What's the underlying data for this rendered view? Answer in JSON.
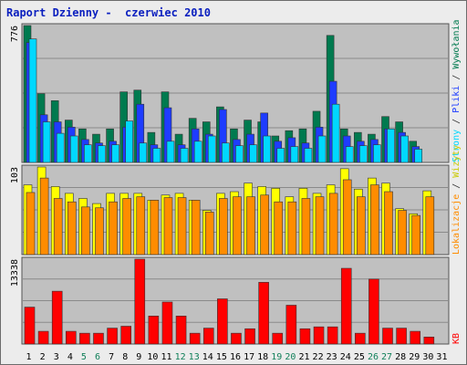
{
  "report_title": "Raport Dzienny -  czerwiec 2010",
  "colors": {
    "wywolania": "#007a4f",
    "pliki": "#1e3cff",
    "strony": "#00d8ff",
    "wizyty": "#ffff00",
    "lokalizacje": "#ff8c00",
    "kb": "#ff0000",
    "weekend": "#11805a",
    "weekday": "#000000",
    "panel": "#c0c0c0"
  },
  "chart_data": [
    {
      "type": "bar",
      "name": "hits-panel",
      "scale_max_label": "776",
      "ylim": [
        0,
        776
      ],
      "legend": [
        "Wywołania",
        "Pliki",
        "Strony"
      ],
      "categories": [
        "1",
        "2",
        "3",
        "4",
        "5",
        "6",
        "7",
        "8",
        "9",
        "10",
        "11",
        "12",
        "13",
        "14",
        "15",
        "16",
        "17",
        "18",
        "19",
        "20",
        "21",
        "22",
        "23",
        "24",
        "25",
        "26",
        "27",
        "28",
        "29",
        "30",
        "31"
      ],
      "series": [
        {
          "name": "Wywołania",
          "values": [
            776,
            390,
            350,
            240,
            190,
            160,
            190,
            400,
            410,
            170,
            400,
            160,
            250,
            230,
            315,
            190,
            240,
            230,
            150,
            180,
            190,
            290,
            720,
            190,
            170,
            160,
            260,
            230,
            120,
            0,
            0
          ]
        },
        {
          "name": "Pliki",
          "values": [
            680,
            270,
            230,
            200,
            130,
            110,
            120,
            200,
            330,
            100,
            310,
            100,
            190,
            160,
            300,
            130,
            160,
            280,
            120,
            140,
            110,
            200,
            460,
            150,
            120,
            130,
            190,
            170,
            90,
            0,
            0
          ]
        },
        {
          "name": "Strony",
          "values": [
            700,
            230,
            165,
            150,
            100,
            95,
            100,
            235,
            110,
            80,
            120,
            80,
            120,
            150,
            110,
            95,
            100,
            150,
            80,
            90,
            80,
            150,
            330,
            90,
            95,
            100,
            190,
            150,
            75,
            0,
            0
          ]
        }
      ]
    },
    {
      "type": "bar",
      "name": "visits-panel",
      "scale_max_label": "103",
      "ylim": [
        0,
        103
      ],
      "legend": [
        "Lokalizacje",
        "Wizyty"
      ],
      "categories": [
        "1",
        "2",
        "3",
        "4",
        "5",
        "6",
        "7",
        "8",
        "9",
        "10",
        "11",
        "12",
        "13",
        "14",
        "15",
        "16",
        "17",
        "18",
        "19",
        "20",
        "21",
        "22",
        "23",
        "24",
        "25",
        "26",
        "27",
        "28",
        "29",
        "30",
        "31"
      ],
      "series": [
        {
          "name": "Wizyty",
          "values": [
            82,
            103,
            80,
            72,
            66,
            60,
            72,
            72,
            72,
            64,
            70,
            72,
            64,
            52,
            72,
            74,
            84,
            80,
            78,
            68,
            78,
            72,
            82,
            101,
            77,
            90,
            84,
            54,
            48,
            75,
            0
          ]
        },
        {
          "name": "Lokalizacje",
          "values": [
            73,
            90,
            66,
            62,
            56,
            55,
            62,
            66,
            68,
            64,
            67,
            67,
            64,
            50,
            66,
            68,
            68,
            70,
            62,
            62,
            66,
            68,
            72,
            88,
            68,
            82,
            74,
            52,
            46,
            68,
            0
          ]
        }
      ]
    },
    {
      "type": "bar",
      "name": "kb-panel",
      "scale_max_label": "13338",
      "ylim": [
        0,
        13338
      ],
      "legend": [
        "KB"
      ],
      "categories": [
        "1",
        "2",
        "3",
        "4",
        "5",
        "6",
        "7",
        "8",
        "9",
        "10",
        "11",
        "12",
        "13",
        "14",
        "15",
        "16",
        "17",
        "18",
        "19",
        "20",
        "21",
        "22",
        "23",
        "24",
        "25",
        "26",
        "27",
        "28",
        "29",
        "30",
        "31"
      ],
      "series": [
        {
          "name": "KB",
          "values": [
            5800,
            2000,
            8300,
            2000,
            1700,
            1700,
            2500,
            2800,
            13338,
            4400,
            6600,
            4400,
            1700,
            2500,
            7100,
            1700,
            2400,
            9700,
            1700,
            6100,
            2400,
            2700,
            2700,
            11900,
            1700,
            10200,
            2500,
            2500,
            2000,
            1100,
            0
          ]
        }
      ]
    }
  ],
  "weekend_days": [
    "5",
    "6",
    "12",
    "13",
    "19",
    "20",
    "26",
    "27"
  ]
}
